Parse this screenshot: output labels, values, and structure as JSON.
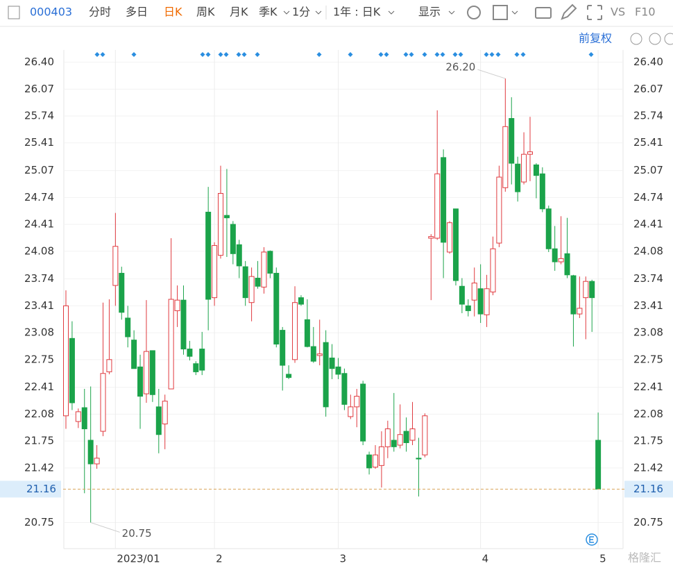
{
  "toolbar": {
    "code": "000403",
    "tabs": [
      "分时",
      "多日",
      "日K",
      "周K",
      "月K",
      "季K",
      "1分",
      "1年 : 日K"
    ],
    "display": "显示",
    "vs": "VS",
    "f10": "F10"
  },
  "adjust": "前复权",
  "watermark": "格隆汇",
  "chart_data": {
    "type": "candlestick",
    "categories": [
      null,
      null,
      null,
      null,
      null,
      null,
      null,
      null,
      "2023/01",
      null,
      null,
      null,
      null,
      null,
      null,
      null,
      null,
      null,
      null,
      null,
      null,
      null,
      null,
      null,
      "2",
      null,
      null,
      null,
      null,
      null,
      null,
      null,
      null,
      null,
      null,
      null,
      null,
      null,
      null,
      null,
      null,
      null,
      null,
      null,
      "3",
      null,
      null,
      null,
      null,
      null,
      null,
      null,
      null,
      null,
      null,
      null,
      null,
      null,
      null,
      null,
      null,
      null,
      null,
      null,
      null,
      null,
      null,
      "4",
      null,
      null,
      null,
      null,
      null,
      null,
      null,
      null,
      null,
      null,
      null,
      null,
      null,
      null,
      null,
      null,
      null,
      null,
      "5"
    ],
    "open": [
      22.06,
      23.01,
      21.99,
      22.16,
      21.76,
      21.47,
      21.87,
      22.6,
      23.66,
      23.81,
      23.26,
      22.99,
      22.66,
      22.33,
      22.86,
      22.17,
      21.96,
      22.39,
      23.35,
      23.48,
      22.88,
      22.7,
      22.88,
      24.56,
      23.51,
      24.03,
      24.52,
      24.41,
      24.16,
      23.89,
      23.45,
      23.75,
      23.64,
      24.08,
      23.81,
      23.11,
      22.57,
      22.75,
      23.51,
      23.24,
      22.91,
      22.8,
      22.96,
      22.77,
      22.66,
      22.58,
      22.05,
      22.17,
      22.45,
      21.58,
      21.43,
      21.45,
      21.68,
      21.76,
      21.7,
      21.87,
      21.76,
      21.54,
      21.58,
      24.24,
      24.24,
      25.23,
      24.07,
      24.6,
      23.65,
      23.41,
      23.48,
      23.62,
      23.3,
      23.58,
      24.18,
      24.86,
      25.71,
      25.15,
      24.93,
      25.27,
      25.14,
      25.03,
      24.6,
      24.11,
      23.95,
      24.05,
      23.78,
      23.31,
      23.51,
      23.71,
      21.76
    ],
    "high": [
      23.6,
      23.22,
      22.15,
      22.39,
      22.42,
      21.7,
      23.45,
      23.49,
      24.55,
      23.89,
      23.41,
      23.11,
      22.81,
      23.48,
      22.86,
      22.39,
      22.32,
      24.24,
      23.66,
      23.66,
      22.98,
      22.73,
      23.09,
      24.87,
      24.19,
      25.13,
      25.09,
      24.45,
      24.22,
      23.96,
      23.88,
      23.96,
      24.13,
      24.09,
      23.88,
      23.15,
      22.68,
      23.65,
      23.54,
      23.49,
      23.15,
      23.24,
      23.11,
      22.94,
      22.77,
      22.64,
      22.32,
      22.39,
      22.49,
      21.62,
      21.7,
      21.87,
      22.0,
      22.34,
      22.2,
      22.04,
      22.23,
      21.79,
      22.09,
      24.29,
      25.81,
      25.33,
      24.45,
      24.6,
      23.75,
      23.49,
      23.88,
      23.92,
      23.79,
      24.26,
      25.13,
      26.2,
      25.97,
      25.24,
      25.54,
      25.73,
      25.16,
      25.11,
      24.64,
      24.39,
      24.51,
      24.49,
      23.79,
      23.77,
      23.77,
      23.73,
      22.1
    ],
    "low": [
      21.9,
      22.13,
      21.91,
      21.11,
      20.75,
      21.41,
      21.81,
      22.57,
      23.41,
      23.24,
      22.9,
      22.64,
      21.9,
      22.22,
      22.23,
      21.6,
      21.65,
      22.39,
      23.15,
      22.81,
      22.74,
      22.56,
      22.56,
      23.11,
      23.41,
      23.99,
      24.01,
      23.92,
      23.75,
      23.41,
      23.22,
      23.62,
      23.56,
      23.75,
      22.9,
      22.37,
      22.51,
      22.71,
      23.41,
      22.9,
      22.71,
      22.68,
      22.05,
      22.51,
      22.51,
      22.13,
      22.02,
      21.92,
      21.7,
      21.34,
      21.41,
      21.18,
      21.54,
      21.62,
      21.66,
      21.62,
      21.7,
      21.07,
      21.55,
      23.48,
      24.22,
      23.75,
      24.05,
      23.66,
      23.32,
      23.28,
      23.28,
      23.2,
      23.15,
      23.54,
      24.13,
      24.81,
      24.9,
      24.69,
      24.9,
      24.94,
      24.73,
      24.56,
      24.07,
      23.84,
      23.92,
      23.75,
      22.91,
      23.26,
      23.0,
      23.09,
      21.16
    ],
    "close": [
      23.41,
      22.22,
      22.11,
      21.9,
      21.47,
      21.54,
      22.58,
      22.75,
      24.14,
      23.33,
      23.03,
      22.64,
      22.3,
      22.85,
      22.32,
      21.83,
      22.24,
      23.49,
      23.48,
      22.88,
      22.79,
      22.6,
      22.62,
      23.49,
      24.15,
      24.79,
      24.49,
      24.05,
      23.9,
      23.51,
      23.77,
      23.65,
      24.07,
      23.81,
      22.94,
      22.68,
      22.53,
      23.45,
      23.43,
      22.91,
      22.73,
      22.82,
      22.17,
      22.64,
      22.57,
      22.2,
      22.17,
      22.3,
      21.75,
      21.42,
      21.58,
      21.68,
      21.9,
      21.68,
      21.83,
      21.73,
      21.9,
      21.53,
      22.06,
      24.26,
      25.03,
      24.19,
      24.43,
      23.72,
      23.43,
      23.35,
      23.69,
      23.31,
      23.62,
      24.11,
      24.99,
      25.61,
      25.16,
      24.81,
      25.27,
      25.3,
      25.01,
      24.6,
      24.11,
      23.95,
      23.99,
      23.79,
      23.31,
      23.38,
      23.71,
      23.51,
      21.16
    ],
    "up_color": "#e0393e",
    "down_color": "#1ba34a",
    "ylim": [
      20.43,
      26.55
    ],
    "yticks": [
      {
        "value": 26.4,
        "label": "26.40"
      },
      26.07,
      25.74,
      25.41,
      25.07,
      24.74,
      24.41,
      24.08,
      23.74,
      23.41,
      23.08,
      22.75,
      22.41,
      22.08,
      21.75,
      21.42,
      20.75
    ],
    "grid": true,
    "last_price": 21.16,
    "max_label": "26.20",
    "min_label": "20.75"
  }
}
